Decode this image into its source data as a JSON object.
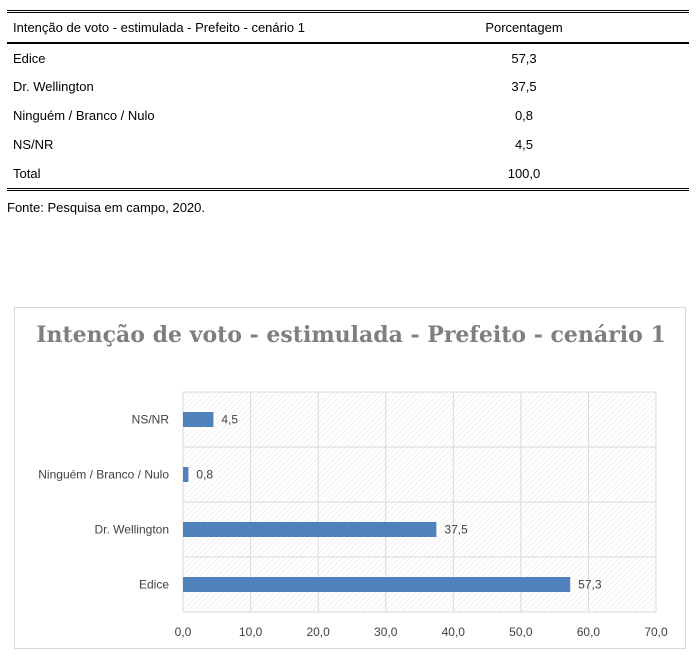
{
  "table": {
    "header": {
      "label": "Intenção de voto - estimulada - Prefeito - cenário 1",
      "value": "Porcentagem"
    },
    "rows": [
      {
        "label": "Edice",
        "value": "57,3"
      },
      {
        "label": "Dr. Wellington",
        "value": "37,5"
      },
      {
        "label": "Ninguém / Branco / Nulo",
        "value": "0,8"
      },
      {
        "label": "NS/NR",
        "value": "4,5"
      },
      {
        "label": "Total",
        "value": "100,0"
      }
    ],
    "source": "Fonte: Pesquisa em campo, 2020."
  },
  "colors": {
    "bar": "#4f81bd",
    "title": "#7f7f7f",
    "axis_text": "#404040",
    "grid": "#d9d9d9"
  },
  "chart_data": {
    "type": "bar",
    "orientation": "horizontal",
    "title": "Intenção de voto - estimulada - Prefeito - cenário 1",
    "categories": [
      "NS/NR",
      "Ninguém / Branco / Nulo",
      "Dr. Wellington",
      "Edice"
    ],
    "values": [
      4.5,
      0.8,
      37.5,
      57.3
    ],
    "value_labels": [
      "4,5",
      "0,8",
      "37,5",
      "57,3"
    ],
    "xlim": [
      0,
      70
    ],
    "x_ticks": [
      0,
      10,
      20,
      30,
      40,
      50,
      60,
      70
    ],
    "x_tick_labels": [
      "0,0",
      "10,0",
      "20,0",
      "30,0",
      "40,0",
      "50,0",
      "60,0",
      "70,0"
    ],
    "grid": true,
    "legend": "none"
  }
}
